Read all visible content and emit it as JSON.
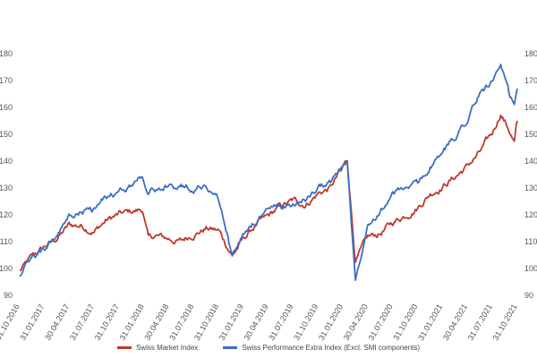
{
  "chart_data": {
    "type": "line",
    "title": "",
    "xlabel": "",
    "ylabel": "",
    "ylim": [
      90,
      180
    ],
    "y_ticks": [
      "90",
      "100",
      "110",
      "120",
      "130",
      "140",
      "150",
      "160",
      "170",
      "180"
    ],
    "x_ticks": [
      "31.10.2016",
      "31.01.2017",
      "30.04.2017",
      "31.07.2017",
      "31.10.2017",
      "31.01.2018",
      "30.04.2018",
      "31.07.2018",
      "31.10.2018",
      "31.01.2019",
      "30.04.2019",
      "31.07.2019",
      "31.10.2019",
      "31.01.2020",
      "30.04.2020",
      "31.07.2020",
      "31.10.2020",
      "31.01.2021",
      "30.04.2021",
      "31.07.2021",
      "31.10.2021"
    ],
    "grid": false,
    "legend_position": "bottom",
    "series": [
      {
        "name": "Swiss Market Index",
        "color": "#c0392b",
        "x": [
          "2016-10-31",
          "2016-12-15",
          "2017-01-31",
          "2017-03-15",
          "2017-04-30",
          "2017-06-15",
          "2017-07-31",
          "2017-09-15",
          "2017-10-31",
          "2017-12-15",
          "2018-01-25",
          "2018-02-15",
          "2018-03-15",
          "2018-04-30",
          "2018-06-15",
          "2018-07-31",
          "2018-09-15",
          "2018-10-31",
          "2018-12-20",
          "2019-01-31",
          "2019-03-15",
          "2019-04-30",
          "2019-06-15",
          "2019-07-31",
          "2019-09-15",
          "2019-10-31",
          "2019-12-15",
          "2020-02-15",
          "2020-03-16",
          "2020-04-30",
          "2020-06-15",
          "2020-07-31",
          "2020-09-15",
          "2020-10-30",
          "2020-12-15",
          "2021-01-31",
          "2021-03-15",
          "2021-04-30",
          "2021-06-15",
          "2021-07-31",
          "2021-08-31",
          "2021-09-30",
          "2021-10-20",
          "2021-10-31"
        ],
        "values": [
          99,
          104,
          108,
          111,
          116,
          116,
          114,
          118,
          120,
          121,
          122,
          111,
          112,
          111,
          110,
          113,
          115,
          114,
          105,
          111,
          116,
          119,
          123,
          125,
          124,
          128,
          130,
          140,
          103,
          111,
          113,
          117,
          120,
          123,
          128,
          131,
          134,
          138,
          143,
          150,
          158,
          152,
          147,
          155
        ]
      },
      {
        "name": "Swiss Performance Extra Index (Excl. SMI components)",
        "color": "#3a6fc4",
        "x": [
          "2016-10-31",
          "2016-12-15",
          "2017-01-31",
          "2017-03-15",
          "2017-04-30",
          "2017-06-15",
          "2017-07-31",
          "2017-09-15",
          "2017-10-31",
          "2017-12-15",
          "2018-01-25",
          "2018-02-15",
          "2018-03-15",
          "2018-04-30",
          "2018-06-15",
          "2018-07-31",
          "2018-09-15",
          "2018-10-31",
          "2018-12-20",
          "2019-01-31",
          "2019-03-15",
          "2019-04-30",
          "2019-06-15",
          "2019-07-31",
          "2019-09-15",
          "2019-10-31",
          "2019-12-15",
          "2020-02-15",
          "2020-03-16",
          "2020-04-30",
          "2020-06-15",
          "2020-07-31",
          "2020-09-15",
          "2020-10-30",
          "2020-12-15",
          "2021-01-31",
          "2021-03-15",
          "2021-04-30",
          "2021-06-15",
          "2021-07-31",
          "2021-08-31",
          "2021-09-30",
          "2021-10-20",
          "2021-10-31"
        ],
        "values": [
          98,
          103,
          107,
          112,
          119,
          121,
          122,
          127,
          128,
          131,
          135,
          128,
          130,
          130,
          131,
          130,
          131,
          126,
          104,
          113,
          118,
          122,
          123,
          124,
          126,
          130,
          132,
          140,
          95,
          118,
          122,
          127,
          130,
          131,
          138,
          143,
          149,
          156,
          165,
          170,
          174,
          164,
          160,
          167
        ]
      }
    ]
  }
}
